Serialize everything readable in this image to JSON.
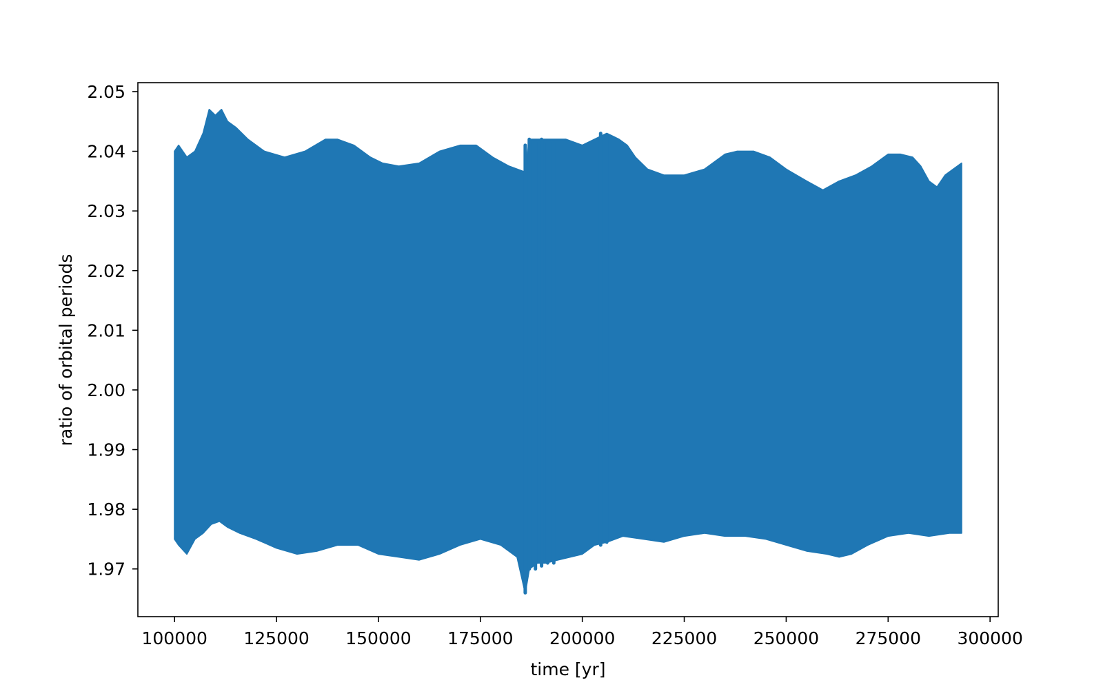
{
  "chart_data": {
    "type": "line",
    "title": "",
    "xlabel": "time [yr]",
    "ylabel": "ratio of orbital periods",
    "xlim": [
      91000,
      302000
    ],
    "ylim": [
      1.962,
      2.0515
    ],
    "grid": false,
    "legend": "none",
    "x_ticks": [
      100000,
      125000,
      150000,
      175000,
      200000,
      225000,
      250000,
      275000,
      300000
    ],
    "x_tick_labels": [
      "100000",
      "125000",
      "150000",
      "175000",
      "200000",
      "225000",
      "250000",
      "275000",
      "300000"
    ],
    "y_ticks": [
      1.97,
      1.98,
      1.99,
      2.0,
      2.01,
      2.02,
      2.03,
      2.04,
      2.05
    ],
    "y_tick_labels": [
      "1.97",
      "1.98",
      "1.99",
      "2.00",
      "2.01",
      "2.02",
      "2.03",
      "2.04",
      "2.05"
    ],
    "series": [
      {
        "color": "#1f77b4",
        "note_x_range": [
          100000,
          293000
        ],
        "upper_envelope": {
          "x": [
            100000,
            101000,
            103000,
            105000,
            107000,
            108500,
            110000,
            111500,
            113000,
            115000,
            118000,
            122000,
            127000,
            132000,
            137000,
            140000,
            144000,
            148000,
            151000,
            155000,
            160000,
            165000,
            170000,
            174000,
            178000,
            182000,
            186000,
            187000,
            189000,
            192000,
            196000,
            200000,
            203000,
            206000,
            209000,
            211000,
            213000,
            216000,
            220000,
            225000,
            230000,
            235000,
            238000,
            242000,
            246000,
            250000,
            255000,
            259000,
            263000,
            267000,
            271000,
            275000,
            278000,
            281000,
            283000,
            285000,
            287000,
            289000,
            291000,
            293000
          ],
          "y": [
            2.04,
            2.041,
            2.039,
            2.04,
            2.043,
            2.047,
            2.046,
            2.047,
            2.045,
            2.044,
            2.042,
            2.04,
            2.039,
            2.04,
            2.042,
            2.042,
            2.041,
            2.039,
            2.038,
            2.0375,
            2.038,
            2.04,
            2.041,
            2.041,
            2.039,
            2.0375,
            2.0365,
            2.042,
            2.042,
            2.042,
            2.042,
            2.041,
            2.042,
            2.043,
            2.042,
            2.041,
            2.039,
            2.037,
            2.036,
            2.036,
            2.037,
            2.0395,
            2.04,
            2.04,
            2.039,
            2.037,
            2.035,
            2.0335,
            2.035,
            2.036,
            2.0375,
            2.0395,
            2.0395,
            2.039,
            2.0375,
            2.035,
            2.034,
            2.036,
            2.037,
            2.038
          ]
        },
        "lower_envelope": {
          "x": [
            100000,
            101000,
            103000,
            105000,
            107000,
            109000,
            111000,
            113000,
            116000,
            120000,
            125000,
            130000,
            135000,
            140000,
            145000,
            150000,
            155000,
            160000,
            165000,
            170000,
            175000,
            180000,
            184000,
            186000,
            187000,
            189000,
            191000,
            194000,
            197000,
            200000,
            203000,
            206000,
            210000,
            215000,
            220000,
            225000,
            230000,
            235000,
            240000,
            245000,
            250000,
            255000,
            260000,
            263000,
            266000,
            270000,
            275000,
            280000,
            285000,
            290000,
            293000
          ],
          "y": [
            1.975,
            1.974,
            1.9725,
            1.975,
            1.976,
            1.9775,
            1.978,
            1.977,
            1.976,
            1.975,
            1.9735,
            1.9725,
            1.973,
            1.974,
            1.974,
            1.9725,
            1.972,
            1.9715,
            1.9725,
            1.974,
            1.975,
            1.974,
            1.972,
            1.966,
            1.97,
            1.971,
            1.971,
            1.9715,
            1.972,
            1.9725,
            1.974,
            1.9745,
            1.9755,
            1.975,
            1.9745,
            1.9755,
            1.976,
            1.9755,
            1.9755,
            1.975,
            1.974,
            1.973,
            1.9725,
            1.972,
            1.9725,
            1.974,
            1.9755,
            1.976,
            1.9755,
            1.976,
            1.976
          ]
        },
        "spikes": [
          {
            "x": 186000,
            "y_min": 1.966,
            "y_max": 2.041
          },
          {
            "x": 187000,
            "y_min": 1.97,
            "y_max": 2.042
          },
          {
            "x": 188500,
            "y_min": 1.97,
            "y_max": 2.0415
          },
          {
            "x": 190000,
            "y_min": 1.9705,
            "y_max": 2.042
          },
          {
            "x": 191500,
            "y_min": 1.971,
            "y_max": 2.0415
          },
          {
            "x": 193000,
            "y_min": 1.971,
            "y_max": 2.0415
          },
          {
            "x": 204500,
            "y_min": 1.974,
            "y_max": 2.043
          },
          {
            "x": 206000,
            "y_min": 1.9745,
            "y_max": 2.0425
          }
        ]
      }
    ]
  }
}
